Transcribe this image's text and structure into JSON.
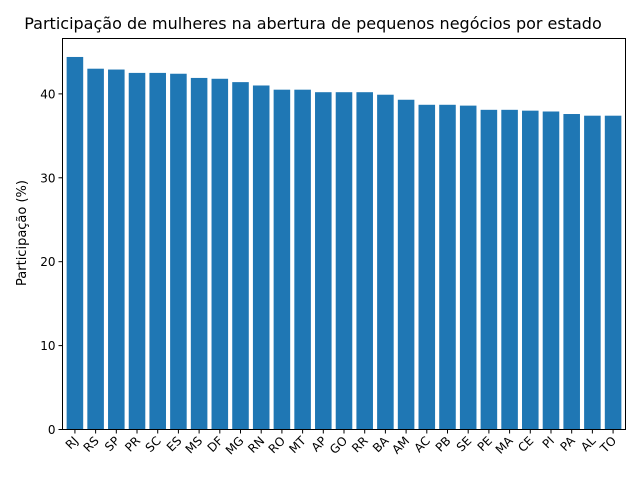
{
  "chart_data": {
    "type": "bar",
    "title": "Participação de mulheres na abertura de pequenos negócios por estado",
    "xlabel": "",
    "ylabel": "Participação (%)",
    "ylim": [
      0,
      46.6
    ],
    "yticks": [
      0,
      10,
      20,
      30,
      40
    ],
    "grid": false,
    "color": "#1f77b4",
    "categories": [
      "RJ",
      "RS",
      "SP",
      "PR",
      "SC",
      "ES",
      "MS",
      "DF",
      "MG",
      "RN",
      "RO",
      "MT",
      "AP",
      "GO",
      "RR",
      "BA",
      "AM",
      "AC",
      "PB",
      "SE",
      "PE",
      "MA",
      "CE",
      "PI",
      "PA",
      "AL",
      "TO"
    ],
    "values": [
      44.4,
      43.0,
      42.9,
      42.5,
      42.5,
      42.4,
      41.9,
      41.8,
      41.4,
      41.0,
      40.5,
      40.5,
      40.2,
      40.2,
      40.2,
      39.9,
      39.3,
      38.7,
      38.7,
      38.6,
      38.1,
      38.1,
      38.0,
      37.9,
      37.6,
      37.4,
      37.4
    ]
  }
}
